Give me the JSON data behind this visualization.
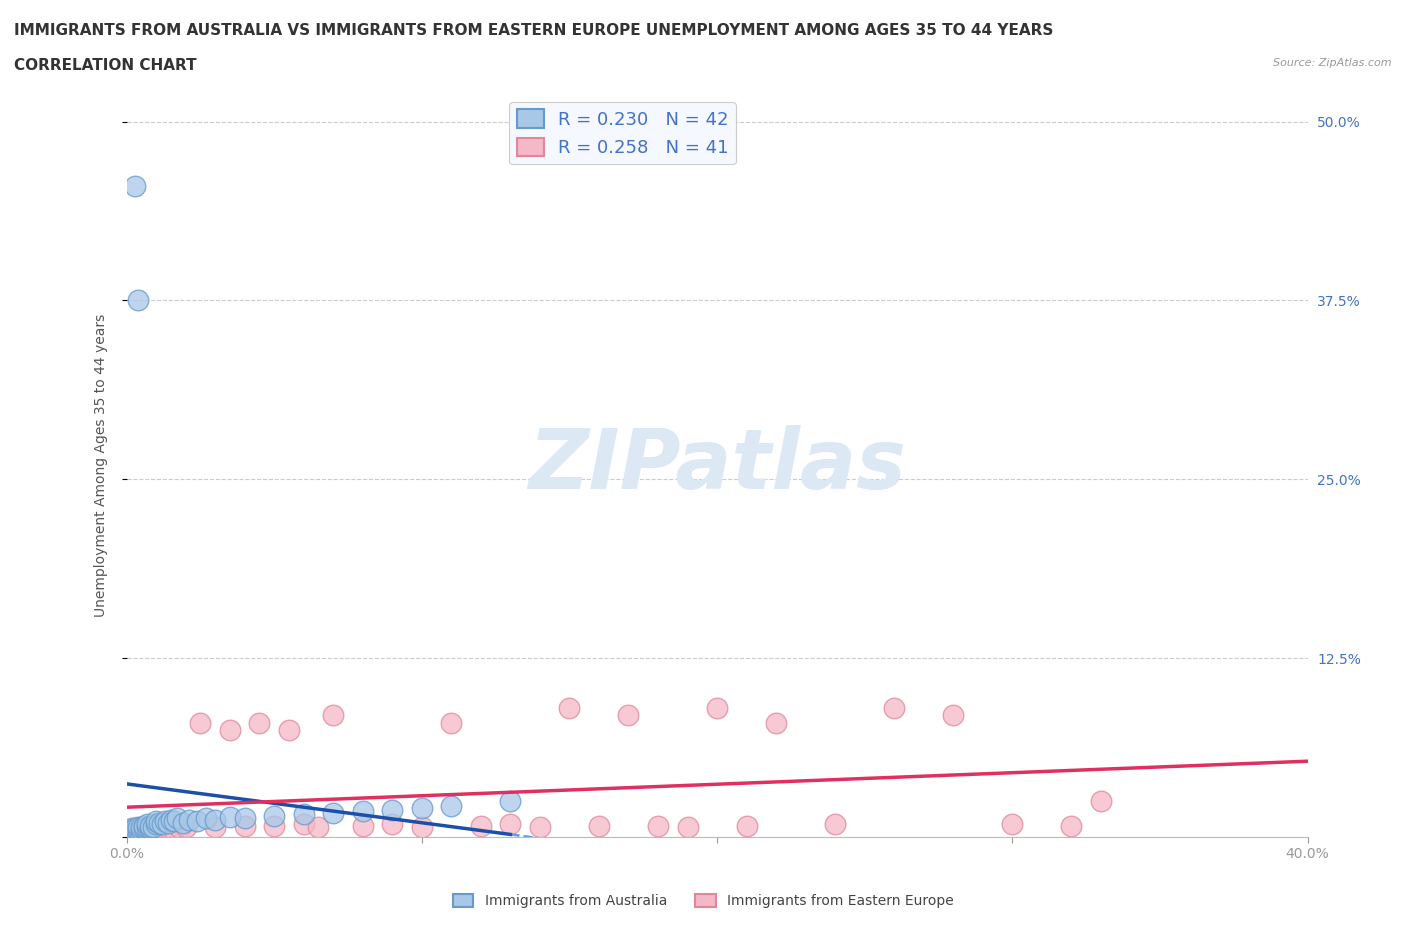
{
  "title_line1": "IMMIGRANTS FROM AUSTRALIA VS IMMIGRANTS FROM EASTERN EUROPE UNEMPLOYMENT AMONG AGES 35 TO 44 YEARS",
  "title_line2": "CORRELATION CHART",
  "source_text": "Source: ZipAtlas.com",
  "ylabel": "Unemployment Among Ages 35 to 44 years",
  "xlim": [
    0.0,
    0.4
  ],
  "ylim": [
    0.0,
    0.52
  ],
  "right_ytick_color": "#4472c4",
  "australia_fill": "#a8c8e8",
  "australia_edge": "#6699cc",
  "eastern_fill": "#f4b8c8",
  "eastern_edge": "#e08898",
  "trend_australia_color": "#1a4faa",
  "trend_eastern_color": "#e03060",
  "trend_dashed_color": "#6699dd",
  "R_australia": 0.23,
  "N_australia": 42,
  "R_eastern": 0.258,
  "N_eastern": 41,
  "watermark_color": "#dde8f5",
  "background_color": "#ffffff",
  "aus_x": [
    0.001,
    0.002,
    0.002,
    0.003,
    0.003,
    0.004,
    0.004,
    0.005,
    0.005,
    0.006,
    0.006,
    0.007,
    0.007,
    0.008,
    0.008,
    0.009,
    0.01,
    0.01,
    0.011,
    0.012,
    0.013,
    0.014,
    0.015,
    0.016,
    0.017,
    0.019,
    0.021,
    0.024,
    0.027,
    0.03,
    0.035,
    0.04,
    0.05,
    0.06,
    0.07,
    0.08,
    0.09,
    0.1,
    0.11,
    0.13,
    0.003,
    0.004
  ],
  "aus_y": [
    0.005,
    0.004,
    0.006,
    0.004,
    0.006,
    0.005,
    0.007,
    0.005,
    0.007,
    0.006,
    0.008,
    0.007,
    0.009,
    0.006,
    0.008,
    0.007,
    0.009,
    0.011,
    0.01,
    0.009,
    0.011,
    0.01,
    0.012,
    0.011,
    0.013,
    0.01,
    0.012,
    0.011,
    0.013,
    0.012,
    0.014,
    0.013,
    0.015,
    0.016,
    0.017,
    0.018,
    0.019,
    0.02,
    0.022,
    0.025,
    0.455,
    0.375
  ],
  "east_x": [
    0.002,
    0.004,
    0.006,
    0.008,
    0.01,
    0.012,
    0.014,
    0.016,
    0.018,
    0.02,
    0.025,
    0.03,
    0.035,
    0.04,
    0.045,
    0.05,
    0.055,
    0.06,
    0.065,
    0.07,
    0.08,
    0.09,
    0.1,
    0.11,
    0.12,
    0.13,
    0.14,
    0.15,
    0.16,
    0.17,
    0.18,
    0.19,
    0.2,
    0.21,
    0.22,
    0.24,
    0.26,
    0.28,
    0.3,
    0.32,
    0.33
  ],
  "east_y": [
    0.005,
    0.005,
    0.006,
    0.005,
    0.006,
    0.005,
    0.006,
    0.005,
    0.006,
    0.007,
    0.08,
    0.007,
    0.075,
    0.008,
    0.08,
    0.008,
    0.075,
    0.009,
    0.007,
    0.085,
    0.008,
    0.009,
    0.007,
    0.08,
    0.008,
    0.009,
    0.007,
    0.09,
    0.008,
    0.085,
    0.008,
    0.007,
    0.09,
    0.008,
    0.08,
    0.009,
    0.09,
    0.085,
    0.009,
    0.008,
    0.025
  ],
  "legend_text_color": "#4472c4",
  "title_fontsize": 11,
  "axis_label_fontsize": 10,
  "tick_fontsize": 10,
  "legend_fontsize": 13
}
